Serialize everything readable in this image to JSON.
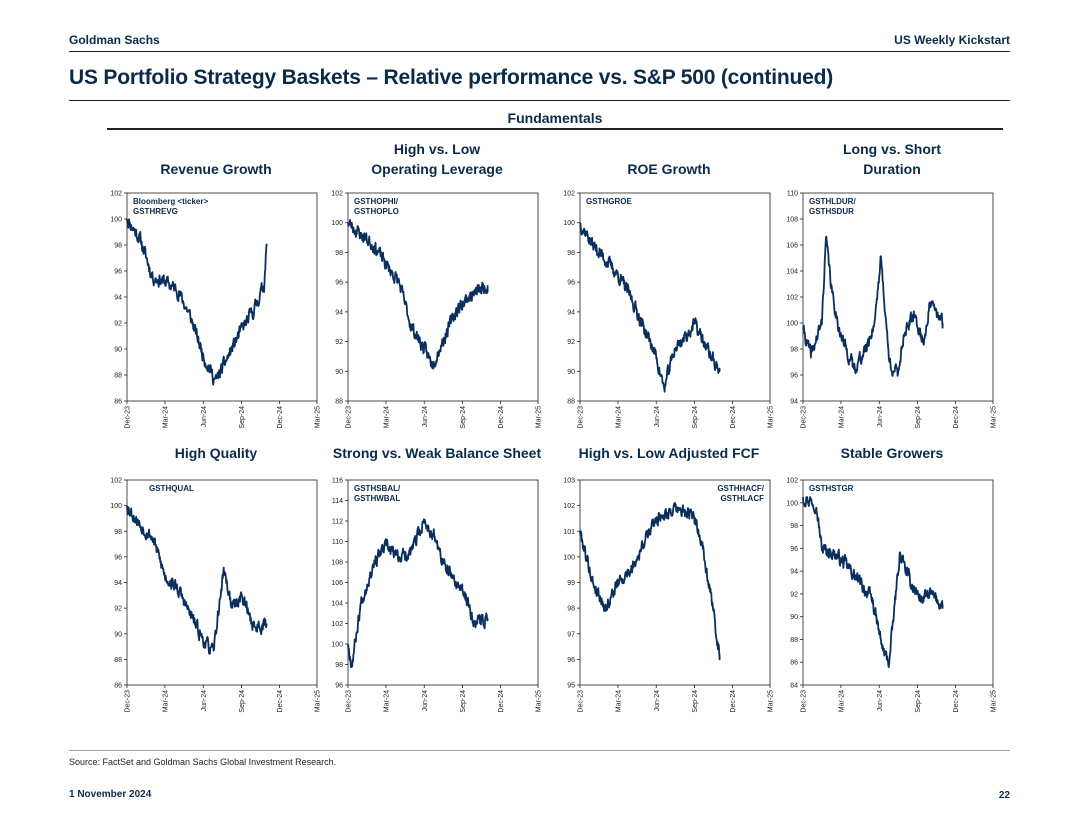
{
  "header": {
    "firm": "Goldman Sachs",
    "publication": "US Weekly Kickstart"
  },
  "title": "US Portfolio Strategy Baskets – Relative performance vs. S&P 500 (continued)",
  "section": "Fundamentals",
  "footer": {
    "source": "Source: FactSet and Goldman Sachs Global Investment Research.",
    "date": "1 November 2024",
    "page": "22"
  },
  "colors": {
    "line": "#0b2f5c",
    "text": "#0b2a4a",
    "axis": "#222222"
  },
  "chart_data": [
    {
      "type": "line",
      "title": [
        "Revenue Growth"
      ],
      "ticker": [
        "Bloomberg <ticker>",
        "GSTHREVG"
      ],
      "x_ticks": [
        "Dec-23",
        "Mar-24",
        "Jun-24",
        "Sep-24",
        "Dec-24",
        "Mar-25"
      ],
      "x_domain": [
        "2023-12-01",
        "2025-03-01"
      ],
      "ylim": [
        86,
        102
      ],
      "yticks": [
        86,
        88,
        90,
        92,
        94,
        96,
        98,
        100,
        102
      ],
      "seed": 11,
      "series": [
        {
          "name": "GSTHREVG",
          "x": [
            "2023-12-01",
            "2024-01-01",
            "2024-02-01",
            "2024-03-01",
            "2024-04-01",
            "2024-05-01",
            "2024-06-01",
            "2024-07-01",
            "2024-08-01",
            "2024-09-01",
            "2024-10-01",
            "2024-10-25",
            "2024-10-31"
          ],
          "y": [
            100.0,
            98.5,
            95.5,
            95.2,
            94.5,
            92.5,
            89.5,
            87.5,
            89.5,
            91.5,
            93.0,
            95.0,
            98.1
          ]
        }
      ]
    },
    {
      "type": "line",
      "title": [
        "High vs. Low",
        "Operating Leverage"
      ],
      "ticker": [
        "GSTHOPHI/",
        "GSTHOPLO"
      ],
      "x_ticks": [
        "Dec-23",
        "Mar-24",
        "Jun-24",
        "Sep-24",
        "Dec-24",
        "Mar-25"
      ],
      "x_domain": [
        "2023-12-01",
        "2025-03-01"
      ],
      "ylim": [
        88,
        102
      ],
      "yticks": [
        88,
        90,
        92,
        94,
        96,
        98,
        100,
        102
      ],
      "seed": 23,
      "series": [
        {
          "name": "GSTHOPHI/GSTHOPLO",
          "x": [
            "2023-12-01",
            "2024-01-01",
            "2024-02-01",
            "2024-03-01",
            "2024-04-01",
            "2024-05-01",
            "2024-06-01",
            "2024-06-20",
            "2024-07-15",
            "2024-08-15",
            "2024-09-15",
            "2024-10-31"
          ],
          "y": [
            100.0,
            99.2,
            98.5,
            97.2,
            96.0,
            93.0,
            91.5,
            90.5,
            92.0,
            94.0,
            95.0,
            95.8
          ]
        }
      ]
    },
    {
      "type": "line",
      "title": [
        "ROE Growth"
      ],
      "ticker": [
        "GSTHGROE"
      ],
      "x_ticks": [
        "Dec-23",
        "Mar-24",
        "Jun-24",
        "Sep-24",
        "Dec-24",
        "Mar-25"
      ],
      "x_domain": [
        "2023-12-01",
        "2025-03-01"
      ],
      "ylim": [
        88,
        102
      ],
      "yticks": [
        88,
        90,
        92,
        94,
        96,
        98,
        100,
        102
      ],
      "seed": 37,
      "series": [
        {
          "name": "GSTHGROE",
          "x": [
            "2023-12-01",
            "2024-01-01",
            "2024-02-01",
            "2024-03-01",
            "2024-04-01",
            "2024-05-01",
            "2024-06-01",
            "2024-06-20",
            "2024-07-15",
            "2024-08-15",
            "2024-09-01",
            "2024-10-01",
            "2024-10-31"
          ],
          "y": [
            100.0,
            98.5,
            97.5,
            96.5,
            95.0,
            93.0,
            91.0,
            88.8,
            91.5,
            92.5,
            93.2,
            91.5,
            90.0
          ]
        }
      ]
    },
    {
      "type": "line",
      "title": [
        "Long vs. Short",
        "Duration"
      ],
      "ticker": [
        "GSTHLDUR/",
        "GSTHSDUR"
      ],
      "x_ticks": [
        "Dec-23",
        "Mar-24",
        "Jun-24",
        "Sep-24",
        "Dec-24",
        "Mar-25"
      ],
      "x_domain": [
        "2023-12-01",
        "2025-03-01"
      ],
      "ylim": [
        94,
        110
      ],
      "yticks": [
        94,
        96,
        98,
        100,
        102,
        104,
        106,
        108,
        110
      ],
      "seed": 41,
      "series": [
        {
          "name": "GSTHLDUR/GSTHSDUR",
          "x": [
            "2023-12-01",
            "2023-12-20",
            "2024-01-15",
            "2024-01-25",
            "2024-02-10",
            "2024-03-01",
            "2024-04-01",
            "2024-05-01",
            "2024-05-20",
            "2024-06-05",
            "2024-06-25",
            "2024-07-15",
            "2024-08-01",
            "2024-08-25",
            "2024-09-15",
            "2024-10-01",
            "2024-10-31"
          ],
          "y": [
            99.5,
            97.5,
            100.0,
            106.5,
            102.0,
            99.0,
            96.5,
            98.0,
            100.0,
            105.0,
            97.0,
            96.0,
            99.5,
            100.5,
            98.5,
            101.5,
            100.0
          ]
        }
      ]
    },
    {
      "type": "line",
      "title": [
        "High Quality"
      ],
      "ticker": [
        "GSTHQUAL"
      ],
      "x_ticks": [
        "Dec-23",
        "Mar-24",
        "Jun-24",
        "Sep-24",
        "Dec-24",
        "Mar-25"
      ],
      "x_domain": [
        "2023-12-01",
        "2025-03-01"
      ],
      "ylim": [
        86,
        102
      ],
      "yticks": [
        86,
        88,
        90,
        92,
        94,
        96,
        98,
        100,
        102
      ],
      "seed": 53,
      "series": [
        {
          "name": "GSTHQUAL",
          "x": [
            "2023-12-01",
            "2024-01-01",
            "2024-02-01",
            "2024-03-01",
            "2024-04-01",
            "2024-05-01",
            "2024-06-01",
            "2024-06-25",
            "2024-07-20",
            "2024-08-10",
            "2024-09-01",
            "2024-10-01",
            "2024-10-31"
          ],
          "y": [
            100.0,
            98.5,
            97.5,
            94.5,
            93.5,
            91.5,
            89.5,
            88.5,
            95.0,
            92.0,
            93.0,
            90.5,
            90.8
          ]
        }
      ]
    },
    {
      "type": "line",
      "title": [
        "Strong vs. Weak Balance Sheet"
      ],
      "ticker": [
        "GSTHSBAL/",
        "GSTHWBAL"
      ],
      "x_ticks": [
        "Dec-23",
        "Mar-24",
        "Jun-24",
        "Sep-24",
        "Dec-24",
        "Mar-25"
      ],
      "x_domain": [
        "2023-12-01",
        "2025-03-01"
      ],
      "ylim": [
        96,
        116
      ],
      "yticks": [
        96,
        98,
        100,
        102,
        104,
        106,
        108,
        110,
        112,
        114,
        116
      ],
      "seed": 67,
      "series": [
        {
          "name": "GSTHSBAL/GSTHWBAL",
          "x": [
            "2023-12-01",
            "2023-12-10",
            "2024-01-01",
            "2024-02-01",
            "2024-03-01",
            "2024-04-01",
            "2024-05-01",
            "2024-06-01",
            "2024-06-25",
            "2024-07-20",
            "2024-08-15",
            "2024-09-10",
            "2024-10-01",
            "2024-10-31"
          ],
          "y": [
            100.0,
            98.0,
            104.0,
            108.0,
            109.5,
            108.5,
            109.0,
            112.0,
            110.5,
            107.5,
            106.0,
            104.5,
            102.0,
            102.5
          ]
        }
      ]
    },
    {
      "type": "line",
      "title": [
        "High vs. Low Adjusted FCF"
      ],
      "ticker": [
        "GSTHHACF/",
        "GSTHLACF"
      ],
      "x_ticks": [
        "Dec-23",
        "Mar-24",
        "Jun-24",
        "Sep-24",
        "Dec-24",
        "Mar-25"
      ],
      "x_domain": [
        "2023-12-01",
        "2025-03-01"
      ],
      "ylim": [
        95,
        103
      ],
      "yticks": [
        95,
        96,
        97,
        98,
        99,
        100,
        101,
        102,
        103
      ],
      "seed": 79,
      "series": [
        {
          "name": "GSTHHACF/GSTHLACF",
          "x": [
            "2023-12-01",
            "2024-01-01",
            "2024-02-01",
            "2024-03-01",
            "2024-04-01",
            "2024-05-01",
            "2024-06-01",
            "2024-07-01",
            "2024-08-01",
            "2024-09-01",
            "2024-09-20",
            "2024-10-10",
            "2024-10-31"
          ],
          "y": [
            101.0,
            99.0,
            98.0,
            99.0,
            99.5,
            100.5,
            101.5,
            101.8,
            101.8,
            101.5,
            100.5,
            98.5,
            96.2
          ]
        }
      ]
    },
    {
      "type": "line",
      "title": [
        "Stable Growers"
      ],
      "ticker": [
        "GSTHSTGR"
      ],
      "x_ticks": [
        "Dec-23",
        "Mar-24",
        "Jun-24",
        "Sep-24",
        "Dec-24",
        "Mar-25"
      ],
      "x_domain": [
        "2023-12-01",
        "2025-03-01"
      ],
      "ylim": [
        84,
        102
      ],
      "yticks": [
        84,
        86,
        88,
        90,
        92,
        94,
        96,
        98,
        100,
        102
      ],
      "seed": 97,
      "series": [
        {
          "name": "GSTHSTGR",
          "x": [
            "2023-12-01",
            "2024-01-01",
            "2024-01-15",
            "2024-02-15",
            "2024-03-15",
            "2024-04-15",
            "2024-05-15",
            "2024-06-10",
            "2024-06-25",
            "2024-07-20",
            "2024-08-15",
            "2024-09-10",
            "2024-10-01",
            "2024-10-31"
          ],
          "y": [
            100.5,
            100.0,
            96.0,
            95.5,
            94.5,
            93.0,
            91.5,
            87.0,
            86.0,
            95.5,
            93.0,
            91.5,
            92.0,
            91.0
          ]
        }
      ]
    }
  ]
}
